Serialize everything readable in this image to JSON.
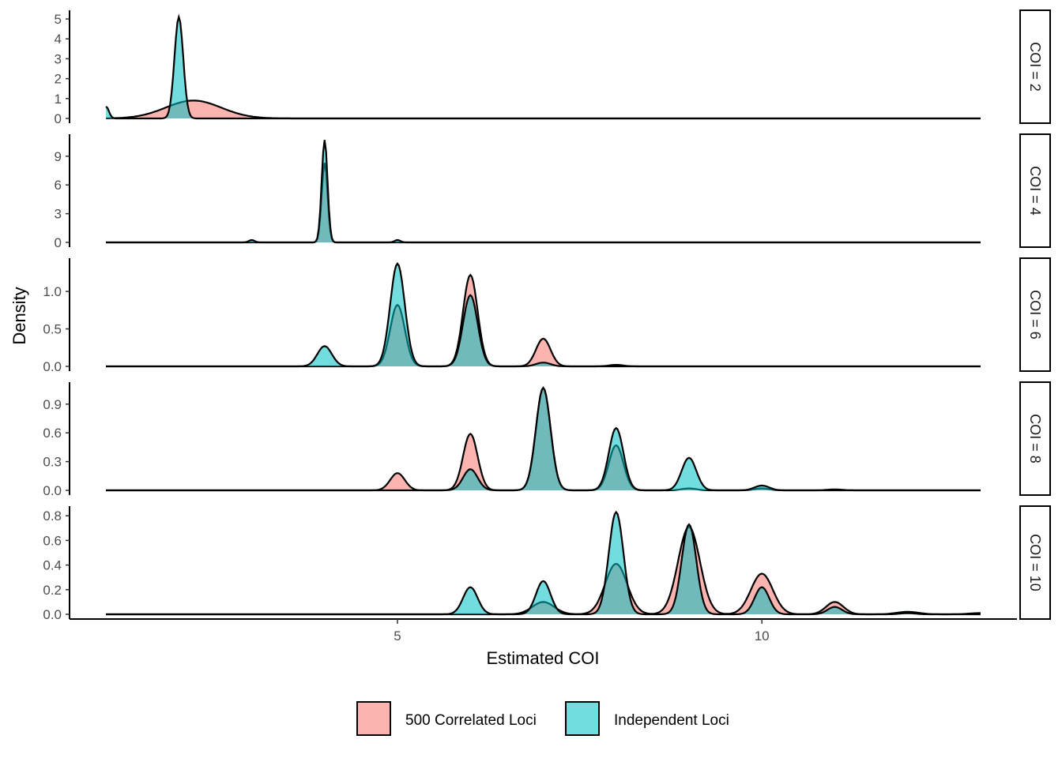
{
  "chart_data": {
    "type": "area",
    "subtype": "faceted-density",
    "xlabel": "Estimated COI",
    "ylabel": "Density",
    "xlim": [
      1,
      13
    ],
    "x_ticks": [
      5,
      10
    ],
    "legend_position": "bottom",
    "series": [
      {
        "name": "500 Correlated Loci",
        "color": "#F8766D"
      },
      {
        "name": "Independent Loci",
        "color": "#00BFC4"
      }
    ],
    "facets": [
      {
        "label": "COI = 2",
        "ylim": [
          0,
          5.2
        ],
        "y_ticks": [
          0,
          1,
          2,
          3,
          4,
          5
        ],
        "peaks": {
          "500 Correlated Loci": [
            [
              2.2,
              0.9,
              0.38
            ]
          ],
          "Independent Loci": [
            [
              2,
              5.1,
              0.06
            ],
            [
              1,
              0.6,
              0.04
            ]
          ]
        }
      },
      {
        "label": "COI = 4",
        "ylim": [
          0,
          10.8
        ],
        "y_ticks": [
          0,
          3,
          6,
          9
        ],
        "peaks": {
          "500 Correlated Loci": [
            [
              4,
              8.3,
              0.04
            ]
          ],
          "Independent Loci": [
            [
              4,
              10.7,
              0.04
            ],
            [
              3,
              0.25,
              0.04
            ],
            [
              5,
              0.25,
              0.04
            ]
          ]
        }
      },
      {
        "label": "COI = 6",
        "ylim": [
          0,
          1.38
        ],
        "y_ticks": [
          0.0,
          0.5,
          1.0
        ],
        "peaks": {
          "500 Correlated Loci": [
            [
              5,
              0.82,
              0.1
            ],
            [
              6,
              1.22,
              0.1
            ],
            [
              7,
              0.37,
              0.1
            ],
            [
              8,
              0.02,
              0.1
            ]
          ],
          "Independent Loci": [
            [
              4,
              0.27,
              0.1
            ],
            [
              5,
              1.37,
              0.1
            ],
            [
              6,
              0.95,
              0.1
            ],
            [
              7,
              0.05,
              0.1
            ]
          ]
        }
      },
      {
        "label": "COI = 8",
        "ylim": [
          0,
          1.08
        ],
        "y_ticks": [
          0.0,
          0.3,
          0.6,
          0.9
        ],
        "peaks": {
          "500 Correlated Loci": [
            [
              5,
              0.18,
              0.1
            ],
            [
              6,
              0.59,
              0.1
            ],
            [
              7,
              1.07,
              0.1
            ],
            [
              8,
              0.47,
              0.1
            ],
            [
              9,
              0.02,
              0.1
            ],
            [
              10,
              0.02,
              0.1
            ],
            [
              11,
              0.01,
              0.1
            ]
          ],
          "Independent Loci": [
            [
              6,
              0.22,
              0.1
            ],
            [
              7,
              1.07,
              0.1
            ],
            [
              8,
              0.65,
              0.1
            ],
            [
              9,
              0.34,
              0.1
            ],
            [
              10,
              0.05,
              0.1
            ]
          ]
        }
      },
      {
        "label": "COI = 10",
        "ylim": [
          0,
          0.84
        ],
        "y_ticks": [
          0.0,
          0.2,
          0.4,
          0.6,
          0.8
        ],
        "peaks": {
          "500 Correlated Loci": [
            [
              7,
              0.1,
              0.15
            ],
            [
              8,
              0.41,
              0.15
            ],
            [
              9,
              0.71,
              0.15
            ],
            [
              10,
              0.33,
              0.15
            ],
            [
              11,
              0.1,
              0.12
            ],
            [
              12,
              0.02,
              0.15
            ],
            [
              13,
              0.01,
              0.15
            ]
          ],
          "Independent Loci": [
            [
              6,
              0.22,
              0.1
            ],
            [
              7,
              0.27,
              0.1
            ],
            [
              8,
              0.83,
              0.1
            ],
            [
              9,
              0.73,
              0.1
            ],
            [
              10,
              0.22,
              0.1
            ],
            [
              11,
              0.06,
              0.1
            ],
            [
              12,
              0.01,
              0.1
            ]
          ]
        }
      }
    ]
  }
}
